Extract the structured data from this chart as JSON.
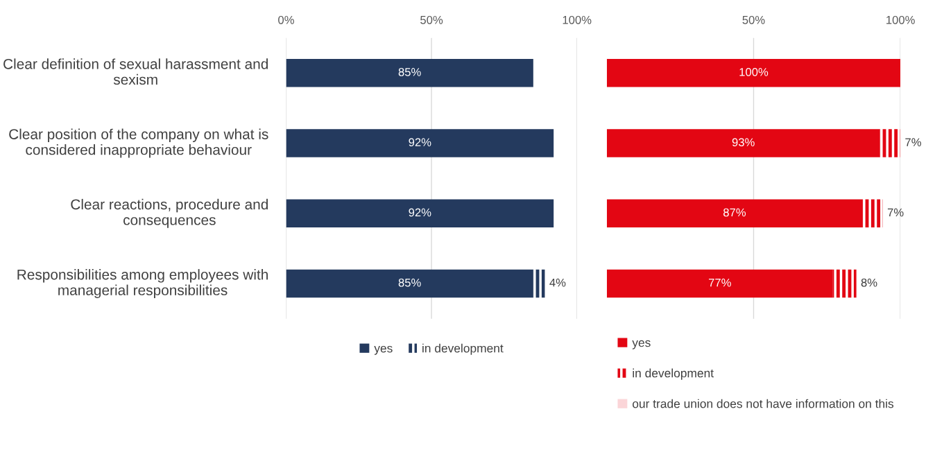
{
  "chart_data": [
    {
      "type": "bar",
      "orientation": "horizontal",
      "stacked": true,
      "categories": [
        "Clear definition of sexual harassment and sexism",
        "Clear position of the company on what is considered inappropriate behaviour",
        "Clear reactions, procedure and consequences",
        "Responsibilities among employees with managerial responsibilities"
      ],
      "xlim": [
        0,
        100
      ],
      "xticks": [
        {
          "value": 0,
          "label": "0%"
        },
        {
          "value": 50,
          "label": "50%"
        },
        {
          "value": 100,
          "label": "100%"
        }
      ],
      "grid": "x",
      "legend": "bottom",
      "series": [
        {
          "name": "yes",
          "color": "#243a5e",
          "values": [
            85,
            92,
            92,
            85
          ],
          "value_labels": [
            "85%",
            "92%",
            "92%",
            "85%"
          ]
        },
        {
          "name": "in development",
          "color": "#243a5e",
          "values": [
            null,
            null,
            null,
            4
          ],
          "value_labels": [
            null,
            null,
            null,
            "4%"
          ]
        }
      ]
    },
    {
      "type": "bar",
      "orientation": "horizontal",
      "stacked": true,
      "categories": [
        null,
        null,
        null,
        null
      ],
      "tick_labels": "x",
      "xlim": [
        0,
        100
      ],
      "xticks": [
        {
          "value": 50,
          "label": "50%"
        },
        {
          "value": 100,
          "label": "100%"
        }
      ],
      "grid": "x",
      "legend": "bottom",
      "series": [
        {
          "name": "yes",
          "color": "#e30613",
          "values": [
            100,
            93,
            87,
            77
          ],
          "value_labels": [
            "100%",
            "93%",
            "87%",
            "77%"
          ]
        },
        {
          "name": "in development",
          "color": "#e30613",
          "values": [
            null,
            7,
            7,
            8
          ],
          "value_labels": [
            null,
            "7%",
            "7%",
            "8%"
          ]
        },
        {
          "name": "our trade union does not have information on this",
          "color": "#fbd5d8",
          "values": [
            null,
            null,
            null,
            null
          ]
        }
      ]
    }
  ]
}
